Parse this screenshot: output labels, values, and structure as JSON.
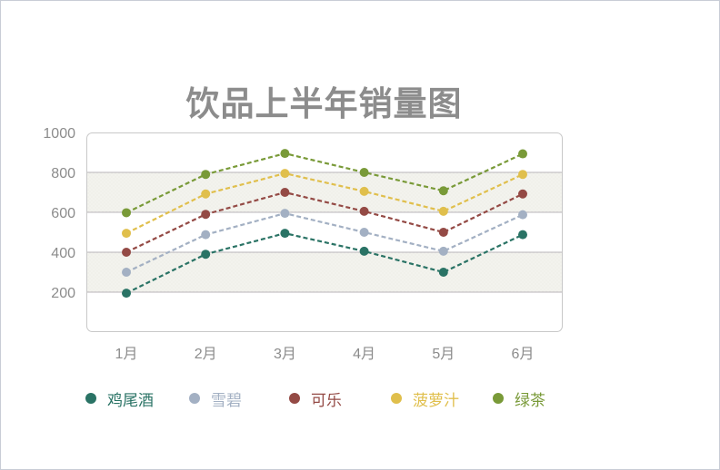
{
  "chart_data": {
    "type": "line",
    "title": "饮品上半年销量图",
    "categories": [
      "1月",
      "2月",
      "3月",
      "4月",
      "5月",
      "6月"
    ],
    "ylim": [
      0,
      1000
    ],
    "yticks": [
      200,
      400,
      600,
      800,
      1000
    ],
    "grid": true,
    "legend_position": "bottom",
    "line_style": "dashed",
    "series": [
      {
        "name": "鸡尾酒",
        "color": "#2a7365",
        "values": [
          195,
          390,
          495,
          405,
          300,
          488
        ]
      },
      {
        "name": "雪碧",
        "color": "#a3b0c3",
        "values": [
          300,
          488,
          595,
          500,
          405,
          588
        ]
      },
      {
        "name": "可乐",
        "color": "#944a45",
        "values": [
          400,
          590,
          700,
          605,
          500,
          692
        ]
      },
      {
        "name": "菠萝汁",
        "color": "#e0bf4c",
        "values": [
          495,
          692,
          795,
          705,
          605,
          790
        ]
      },
      {
        "name": "绿茶",
        "color": "#799a38",
        "values": [
          598,
          790,
          895,
          800,
          708,
          893
        ]
      }
    ]
  }
}
